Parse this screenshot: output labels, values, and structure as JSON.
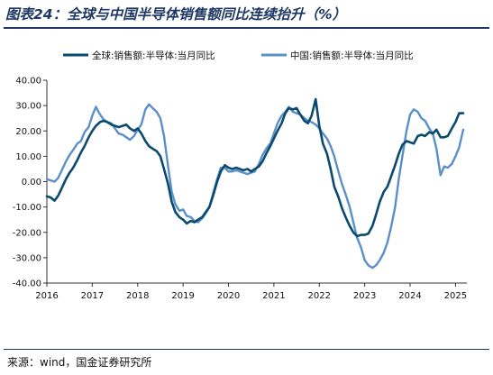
{
  "title": "图表24：全球与中国半导体销售额同比连续抬升（%）",
  "source": "来源：wind，国金证券研究所",
  "colors": {
    "global": "#0b4a6f",
    "china": "#5b8fc9"
  },
  "chart_data": {
    "type": "line",
    "title": "图表24：全球与中国半导体销售额同比连续抬升（%）",
    "xlabel": "",
    "ylabel": "",
    "x_ticks": [
      "2016",
      "2017",
      "2018",
      "2019",
      "2020",
      "2021",
      "2022",
      "2023",
      "2024",
      "2025"
    ],
    "y_ticks": [
      "40.00",
      "30.00",
      "20.00",
      "10.00",
      "0.00",
      "-10.00",
      "-20.00",
      "-30.00",
      "-40.00"
    ],
    "xlim": [
      2016.0,
      2025.25
    ],
    "ylim": [
      -40,
      40
    ],
    "grid": false,
    "legend": "top",
    "series": [
      {
        "name": "全球:销售额:半导体:当月同比",
        "color": "#0b4a6f",
        "x": [
          2016.0,
          2016.08,
          2016.17,
          2016.25,
          2016.33,
          2016.42,
          2016.5,
          2016.58,
          2016.67,
          2016.75,
          2016.83,
          2016.92,
          2017.0,
          2017.08,
          2017.17,
          2017.25,
          2017.33,
          2017.42,
          2017.5,
          2017.58,
          2017.67,
          2017.75,
          2017.83,
          2017.92,
          2018.0,
          2018.08,
          2018.17,
          2018.25,
          2018.33,
          2018.42,
          2018.5,
          2018.58,
          2018.67,
          2018.75,
          2018.83,
          2018.92,
          2019.0,
          2019.08,
          2019.17,
          2019.25,
          2019.33,
          2019.42,
          2019.5,
          2019.58,
          2019.67,
          2019.75,
          2019.83,
          2019.92,
          2020.0,
          2020.08,
          2020.17,
          2020.25,
          2020.33,
          2020.42,
          2020.5,
          2020.58,
          2020.67,
          2020.75,
          2020.83,
          2020.92,
          2021.0,
          2021.08,
          2021.17,
          2021.25,
          2021.33,
          2021.42,
          2021.5,
          2021.58,
          2021.67,
          2021.75,
          2021.83,
          2021.92,
          2022.0,
          2022.08,
          2022.17,
          2022.25,
          2022.33,
          2022.42,
          2022.5,
          2022.58,
          2022.67,
          2022.75,
          2022.83,
          2022.92,
          2023.0,
          2023.08,
          2023.17,
          2023.25,
          2023.33,
          2023.42,
          2023.5,
          2023.58,
          2023.67,
          2023.75,
          2023.83,
          2023.92,
          2024.0,
          2024.08,
          2024.17,
          2024.25,
          2024.33,
          2024.42,
          2024.5,
          2024.58,
          2024.67,
          2024.75,
          2024.83,
          2024.92,
          2025.0,
          2025.08,
          2025.17
        ],
        "values": [
          -5.8,
          -6.2,
          -7.5,
          -5.5,
          -2.5,
          1.0,
          3.5,
          5.5,
          8.5,
          11.5,
          14.0,
          17.5,
          20.0,
          22.0,
          23.5,
          24.0,
          23.5,
          22.5,
          22.0,
          21.5,
          22.0,
          22.5,
          21.0,
          20.0,
          21.0,
          19.0,
          16.0,
          14.0,
          13.0,
          12.0,
          10.0,
          5.0,
          -1.0,
          -8.0,
          -12.0,
          -14.0,
          -15.0,
          -16.5,
          -15.5,
          -16.0,
          -15.0,
          -14.0,
          -12.0,
          -10.0,
          -5.0,
          0.0,
          4.0,
          6.5,
          5.5,
          5.0,
          5.5,
          5.0,
          4.5,
          5.0,
          4.0,
          5.0,
          6.0,
          8.0,
          11.0,
          14.0,
          17.0,
          20.0,
          23.0,
          27.0,
          29.0,
          28.5,
          29.0,
          26.5,
          24.0,
          23.0,
          26.0,
          32.5,
          22.0,
          15.0,
          11.0,
          5.0,
          -2.0,
          -6.0,
          -10.5,
          -14.0,
          -17.5,
          -20.0,
          -21.5,
          -21.0,
          -21.0,
          -20.5,
          -17.5,
          -13.0,
          -8.0,
          -4.0,
          -2.0,
          2.0,
          6.5,
          11.0,
          14.5,
          16.0,
          15.5,
          15.0,
          18.0,
          18.5,
          18.0,
          19.5,
          19.0,
          20.5,
          17.5,
          17.5,
          18.0,
          21.0,
          23.5,
          27.0,
          27.0
        ]
      },
      {
        "name": "中国:销售额:半导体:当月同比",
        "color": "#5b8fc9",
        "x": [
          2016.0,
          2016.08,
          2016.17,
          2016.25,
          2016.33,
          2016.42,
          2016.5,
          2016.58,
          2016.67,
          2016.75,
          2016.83,
          2016.92,
          2017.0,
          2017.08,
          2017.17,
          2017.25,
          2017.33,
          2017.42,
          2017.5,
          2017.58,
          2017.67,
          2017.75,
          2017.83,
          2017.92,
          2018.0,
          2018.08,
          2018.17,
          2018.25,
          2018.33,
          2018.42,
          2018.5,
          2018.58,
          2018.67,
          2018.75,
          2018.83,
          2018.92,
          2019.0,
          2019.08,
          2019.17,
          2019.25,
          2019.33,
          2019.42,
          2019.5,
          2019.58,
          2019.67,
          2019.75,
          2019.83,
          2019.92,
          2020.0,
          2020.08,
          2020.17,
          2020.25,
          2020.33,
          2020.42,
          2020.5,
          2020.58,
          2020.67,
          2020.75,
          2020.83,
          2020.92,
          2021.0,
          2021.08,
          2021.17,
          2021.25,
          2021.33,
          2021.42,
          2021.5,
          2021.58,
          2021.67,
          2021.75,
          2021.83,
          2021.92,
          2022.0,
          2022.08,
          2022.17,
          2022.25,
          2022.33,
          2022.42,
          2022.5,
          2022.58,
          2022.67,
          2022.75,
          2022.83,
          2022.92,
          2023.0,
          2023.08,
          2023.17,
          2023.25,
          2023.33,
          2023.42,
          2023.5,
          2023.58,
          2023.67,
          2023.75,
          2023.83,
          2023.92,
          2024.0,
          2024.08,
          2024.17,
          2024.25,
          2024.33,
          2024.42,
          2024.5,
          2024.58,
          2024.67,
          2024.75,
          2024.83,
          2024.92,
          2025.0,
          2025.08,
          2025.17
        ],
        "values": [
          1.0,
          0.5,
          0.0,
          1.5,
          4.5,
          8.0,
          10.5,
          12.5,
          15.0,
          16.0,
          19.5,
          21.5,
          26.0,
          29.5,
          26.5,
          24.5,
          23.5,
          23.0,
          21.0,
          19.0,
          18.5,
          17.5,
          16.5,
          18.0,
          20.5,
          22.5,
          28.5,
          30.5,
          29.0,
          27.5,
          25.0,
          18.0,
          6.0,
          -4.0,
          -9.0,
          -11.5,
          -11.0,
          -13.5,
          -14.0,
          -15.5,
          -16.0,
          -14.5,
          -12.5,
          -10.0,
          -4.0,
          1.0,
          5.5,
          5.5,
          4.0,
          4.0,
          4.5,
          4.0,
          3.5,
          3.0,
          3.5,
          4.0,
          7.0,
          10.5,
          13.0,
          15.0,
          19.0,
          23.0,
          26.0,
          27.5,
          29.5,
          27.5,
          27.0,
          26.5,
          25.0,
          24.0,
          23.5,
          22.5,
          21.0,
          19.0,
          17.0,
          14.0,
          10.0,
          4.0,
          -1.0,
          -5.0,
          -10.0,
          -16.0,
          -22.0,
          -26.0,
          -31.0,
          -33.0,
          -34.0,
          -33.0,
          -31.0,
          -28.0,
          -24.0,
          -18.0,
          -10.0,
          1.0,
          10.0,
          20.0,
          26.5,
          28.5,
          27.5,
          25.0,
          24.0,
          21.0,
          19.0,
          13.0,
          2.5,
          6.0,
          5.5,
          7.0,
          10.0,
          13.5,
          20.5
        ]
      }
    ]
  }
}
